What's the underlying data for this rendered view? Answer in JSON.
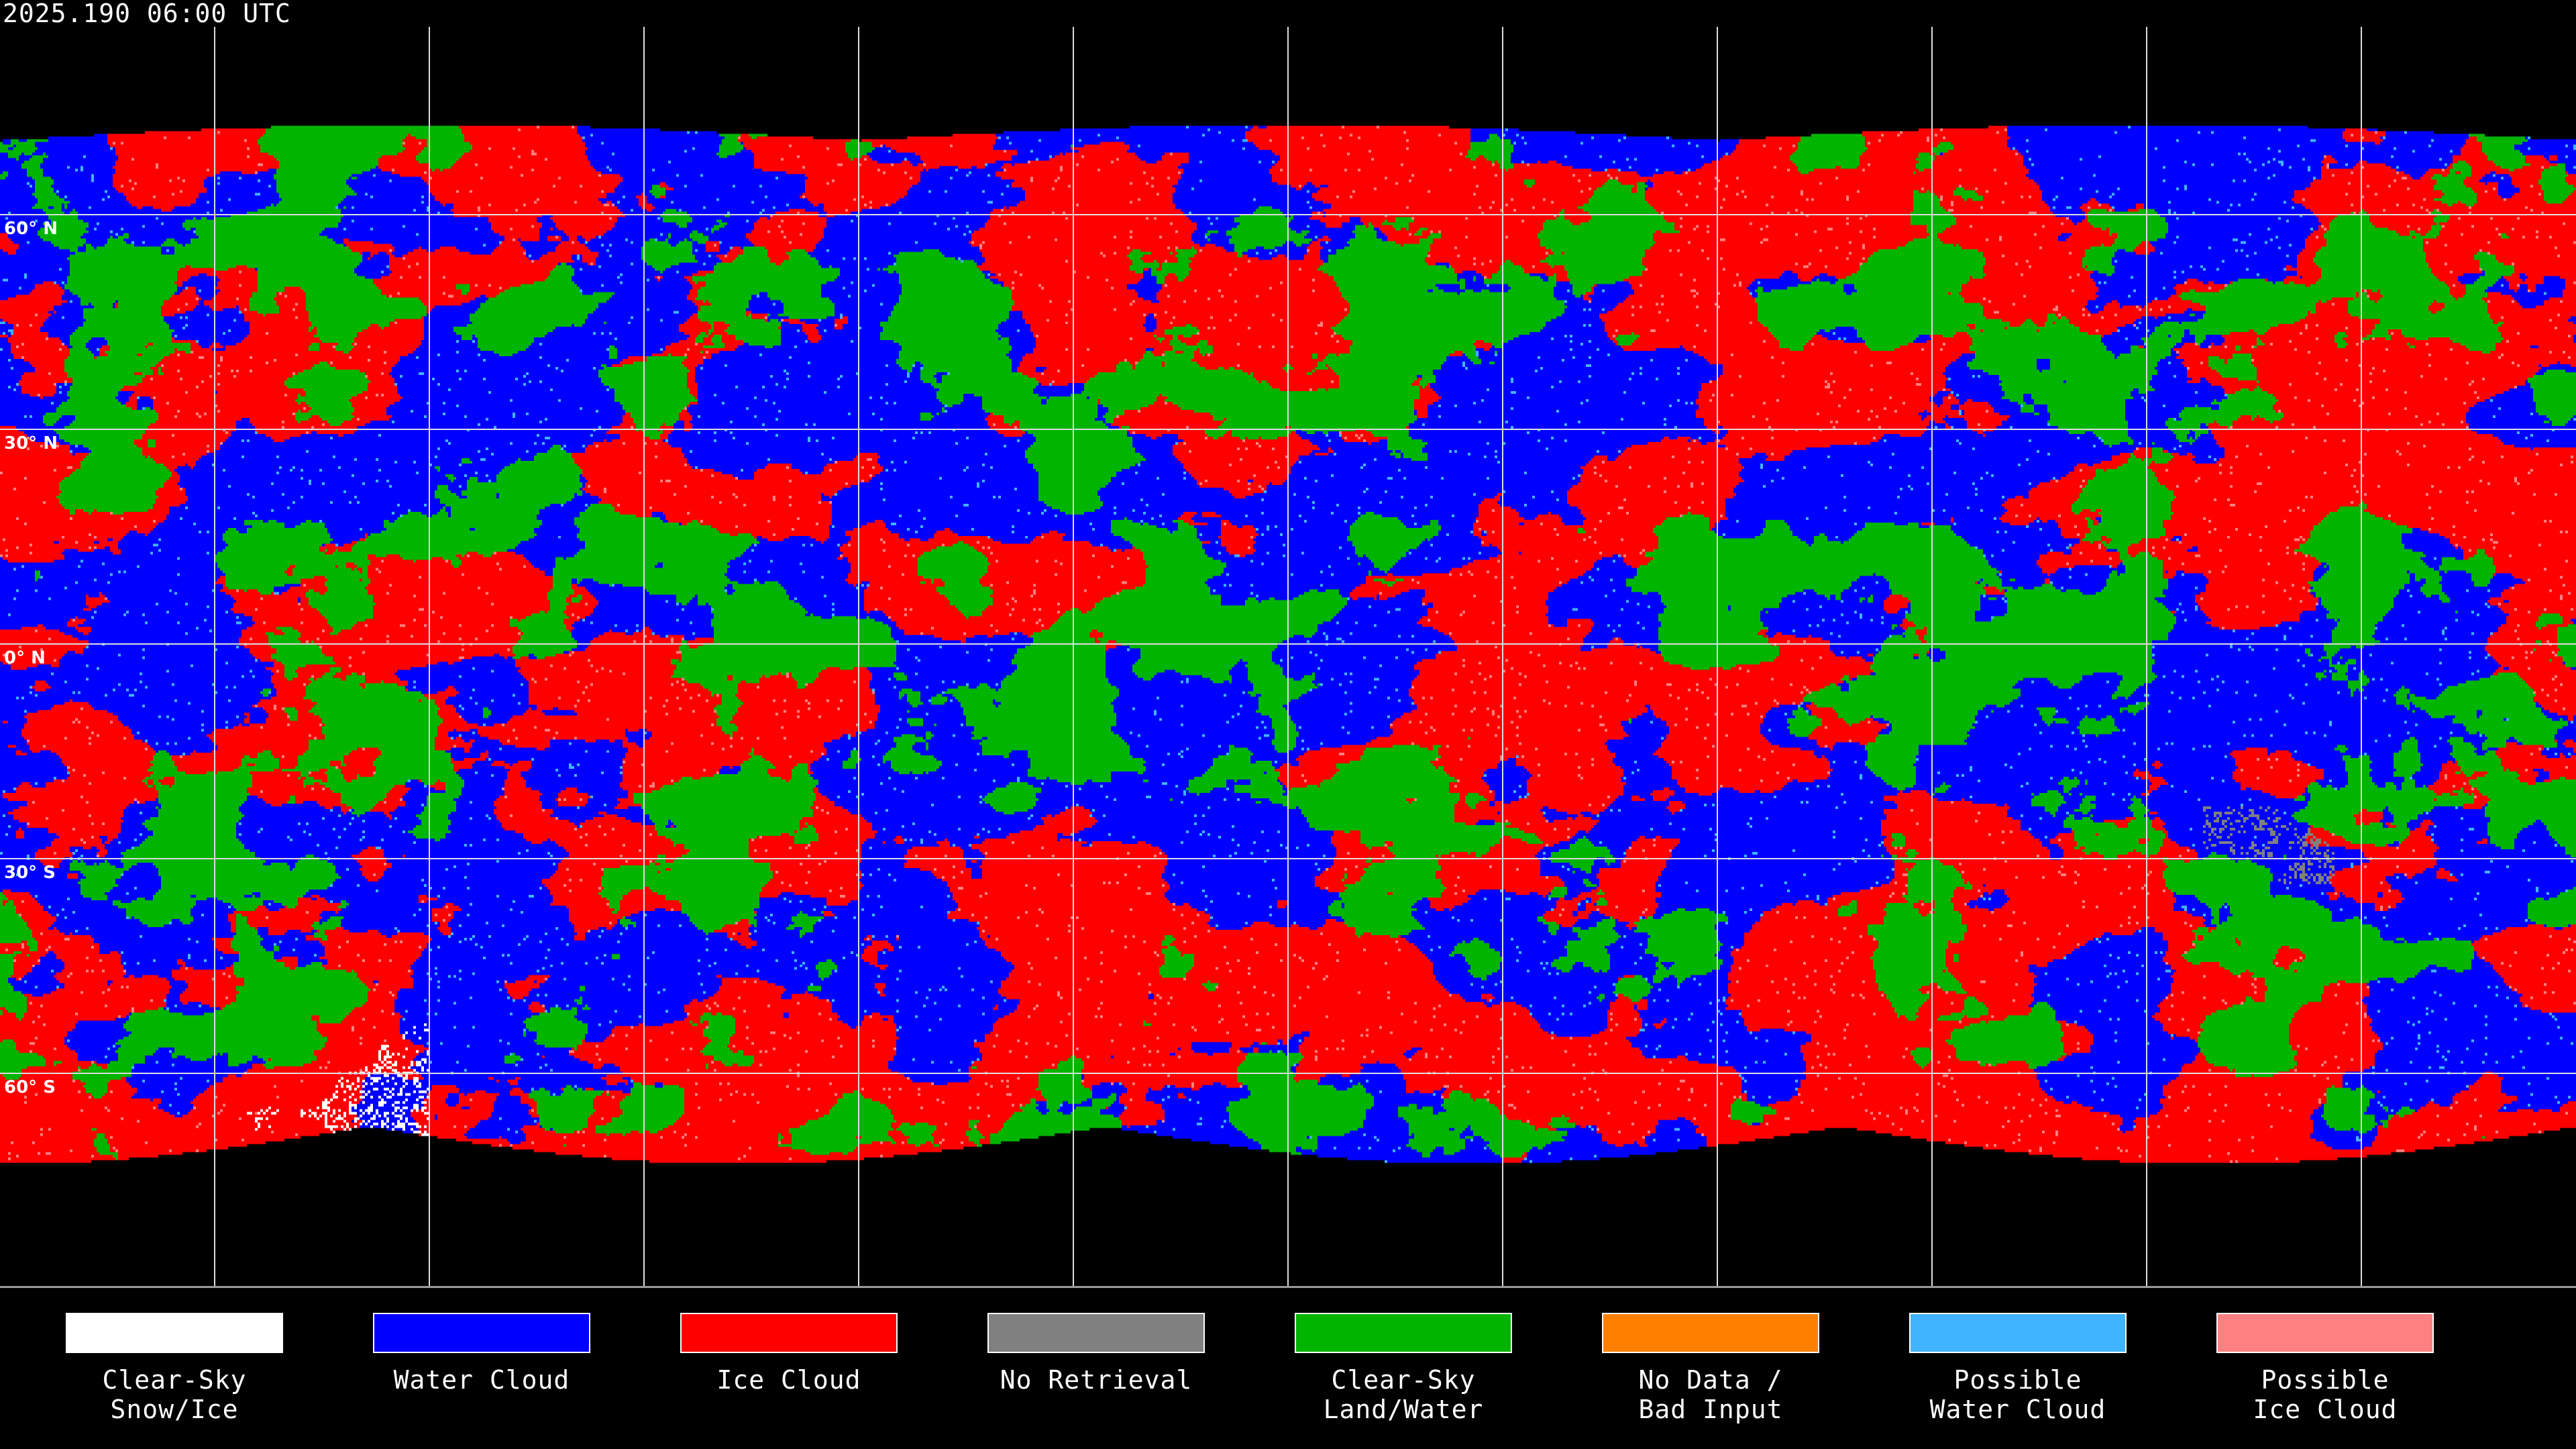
{
  "timestamp": "2025.190 06:00 UTC",
  "map": {
    "projection": "equirectangular",
    "gridlines_every_deg": 30,
    "lat_labels": [
      "60° N",
      "30° N",
      "0° N",
      "30° S",
      "60° S"
    ]
  },
  "legend": [
    {
      "label": "Clear-Sky\nSnow/Ice",
      "color": "#ffffff"
    },
    {
      "label": "Water Cloud",
      "color": "#0000ff"
    },
    {
      "label": "Ice Cloud",
      "color": "#ff0000"
    },
    {
      "label": "No Retrieval",
      "color": "#808080"
    },
    {
      "label": "Clear-Sky\nLand/Water",
      "color": "#00b400"
    },
    {
      "label": "No Data /\nBad Input",
      "color": "#ff8000"
    },
    {
      "label": "Possible\nWater Cloud",
      "color": "#40b4ff"
    },
    {
      "label": "Possible\nIce Cloud",
      "color": "#ff8080"
    }
  ]
}
